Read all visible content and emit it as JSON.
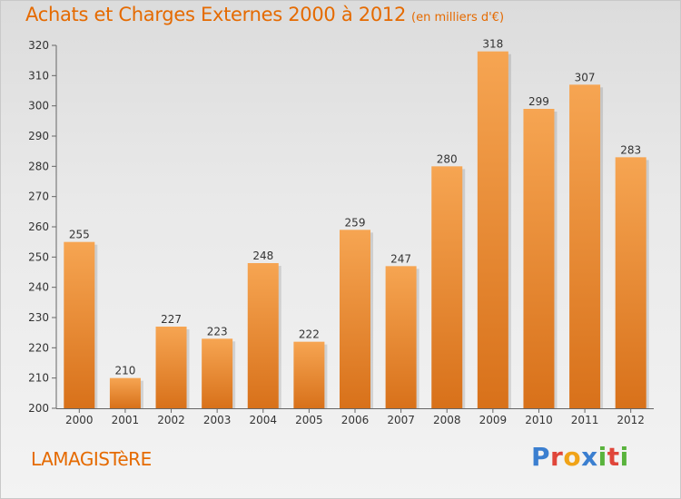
{
  "title": "Achats et Charges Externes 2000 à 2012",
  "unit": "(en milliers d'€)",
  "commune": "LAMAGISTèRE",
  "brand": {
    "letters": [
      "P",
      "r",
      "o",
      "x",
      "i",
      "t",
      "i"
    ],
    "colors": [
      "#3b7fd0",
      "#e0463a",
      "#f0a318",
      "#3b7fd0",
      "#59b33c",
      "#e0463a",
      "#59b33c"
    ]
  },
  "colors": {
    "bar_top": "#f6a552",
    "bar_bottom": "#d8711a",
    "title": "#e56a00"
  },
  "chart_data": {
    "type": "bar",
    "title": "Achats et Charges Externes 2000 à 2012",
    "subtitle": "(en milliers d'€)",
    "xlabel": "",
    "ylabel": "",
    "categories": [
      "2000",
      "2001",
      "2002",
      "2003",
      "2004",
      "2005",
      "2006",
      "2007",
      "2008",
      "2009",
      "2010",
      "2011",
      "2012"
    ],
    "values": [
      255,
      210,
      227,
      223,
      248,
      222,
      259,
      247,
      280,
      318,
      299,
      307,
      283
    ],
    "ylim": [
      200,
      320
    ],
    "yticks": [
      200,
      210,
      220,
      230,
      240,
      250,
      260,
      270,
      280,
      290,
      300,
      310,
      320
    ],
    "grid": false,
    "legend": "none"
  }
}
